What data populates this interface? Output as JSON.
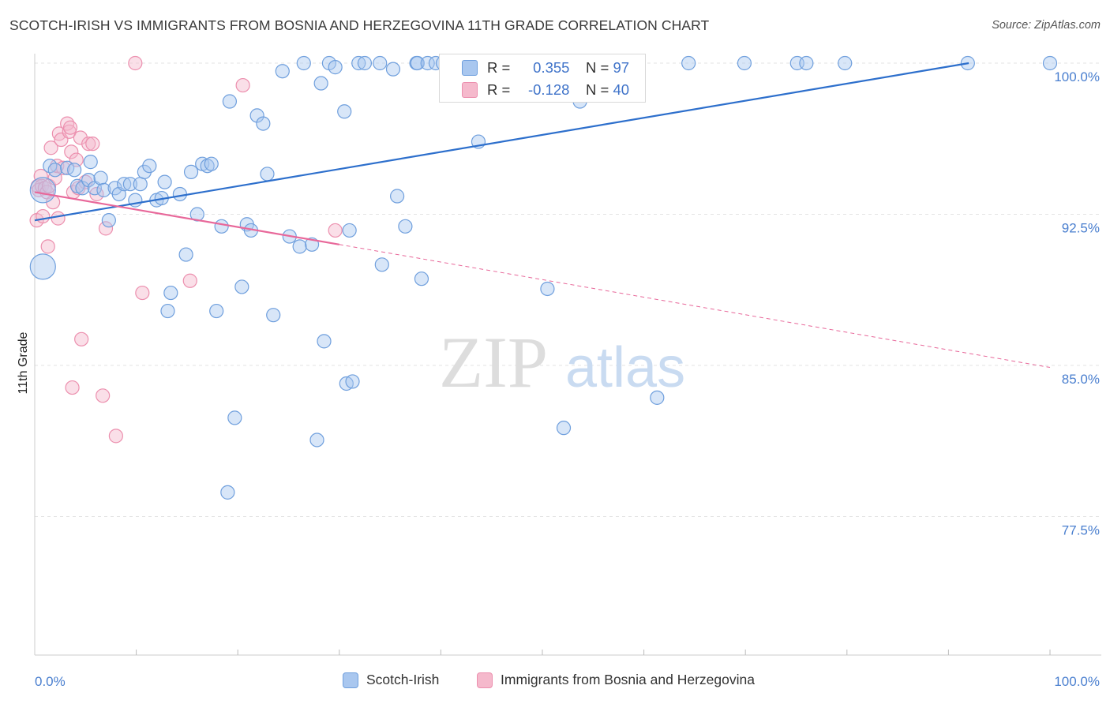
{
  "title": "SCOTCH-IRISH VS IMMIGRANTS FROM BOSNIA AND HERZEGOVINA 11TH GRADE CORRELATION CHART",
  "source": "Source: ZipAtlas.com",
  "watermark": {
    "zip": "ZIP",
    "atlas": "atlas"
  },
  "legend_stats": {
    "rows": [
      {
        "r_label": "R =",
        "r_value": "0.355",
        "n_label": "N =",
        "n_value": "97"
      },
      {
        "r_label": "R =",
        "r_value": "-0.128",
        "n_label": "N =",
        "n_value": "40"
      }
    ]
  },
  "colors": {
    "blue_fill": "#a9c7ef",
    "blue_stroke": "#6f9fdd",
    "blue_line": "#2d6fcc",
    "pink_fill": "#f5b9cc",
    "pink_stroke": "#ec8fae",
    "pink_line": "#e8689a",
    "tick_text": "#4a7fcf",
    "grid": "#e3e3e3"
  },
  "chart_data": {
    "type": "scatter",
    "title": "SCOTCH-IRISH VS IMMIGRANTS FROM BOSNIA AND HERZEGOVINA 11TH GRADE CORRELATION CHART",
    "xlabel": "",
    "ylabel": "11th Grade",
    "xlim": [
      0,
      100
    ],
    "ylim": [
      70.0,
      100.8
    ],
    "x_tick_labels": [
      "0.0%",
      "100.0%"
    ],
    "y_ticks": [
      100.0,
      92.5,
      85.0,
      77.5
    ],
    "y_tick_labels": [
      "100.0%",
      "92.5%",
      "85.0%",
      "77.5%"
    ],
    "grid": true,
    "legend_position": "bottom",
    "series": [
      {
        "name": "Scotch-Irish",
        "color": "#6f9fdd",
        "trend": {
          "x": [
            0,
            92
          ],
          "y": [
            92.2,
            100.0
          ],
          "style": "solid"
        },
        "points": [
          {
            "x": 0.8,
            "y": 89.9,
            "big": true
          },
          {
            "x": 0.8,
            "y": 93.7,
            "big": true
          },
          {
            "x": 1.5,
            "y": 94.9
          },
          {
            "x": 2.0,
            "y": 94.7
          },
          {
            "x": 3.2,
            "y": 94.8
          },
          {
            "x": 3.9,
            "y": 94.7
          },
          {
            "x": 4.2,
            "y": 93.9
          },
          {
            "x": 4.7,
            "y": 93.8
          },
          {
            "x": 5.3,
            "y": 94.2
          },
          {
            "x": 5.5,
            "y": 95.1
          },
          {
            "x": 5.9,
            "y": 93.8
          },
          {
            "x": 6.5,
            "y": 94.3
          },
          {
            "x": 6.8,
            "y": 93.7
          },
          {
            "x": 7.3,
            "y": 92.2
          },
          {
            "x": 7.9,
            "y": 93.8
          },
          {
            "x": 8.3,
            "y": 93.5
          },
          {
            "x": 8.8,
            "y": 94.0
          },
          {
            "x": 9.4,
            "y": 94.0
          },
          {
            "x": 9.9,
            "y": 93.2
          },
          {
            "x": 10.4,
            "y": 94.0
          },
          {
            "x": 10.8,
            "y": 94.6
          },
          {
            "x": 11.3,
            "y": 94.9
          },
          {
            "x": 12.0,
            "y": 93.2
          },
          {
            "x": 12.5,
            "y": 93.3
          },
          {
            "x": 12.8,
            "y": 94.1
          },
          {
            "x": 13.4,
            "y": 88.6
          },
          {
            "x": 13.1,
            "y": 87.7
          },
          {
            "x": 14.3,
            "y": 93.5
          },
          {
            "x": 14.9,
            "y": 90.5
          },
          {
            "x": 15.4,
            "y": 94.6
          },
          {
            "x": 16.0,
            "y": 92.5
          },
          {
            "x": 16.5,
            "y": 95.0
          },
          {
            "x": 17.0,
            "y": 94.9
          },
          {
            "x": 17.4,
            "y": 95.0
          },
          {
            "x": 17.9,
            "y": 87.7
          },
          {
            "x": 18.4,
            "y": 91.9
          },
          {
            "x": 19.0,
            "y": 78.7
          },
          {
            "x": 19.2,
            "y": 98.1
          },
          {
            "x": 19.7,
            "y": 82.4
          },
          {
            "x": 20.4,
            "y": 88.9
          },
          {
            "x": 20.9,
            "y": 92.0
          },
          {
            "x": 21.3,
            "y": 91.7
          },
          {
            "x": 21.9,
            "y": 97.4
          },
          {
            "x": 22.5,
            "y": 97.0
          },
          {
            "x": 22.9,
            "y": 94.5
          },
          {
            "x": 23.5,
            "y": 87.5
          },
          {
            "x": 24.4,
            "y": 99.6
          },
          {
            "x": 25.1,
            "y": 91.4
          },
          {
            "x": 26.1,
            "y": 90.9
          },
          {
            "x": 26.5,
            "y": 100.0
          },
          {
            "x": 27.3,
            "y": 91.0
          },
          {
            "x": 27.8,
            "y": 81.3
          },
          {
            "x": 28.2,
            "y": 99.0
          },
          {
            "x": 28.5,
            "y": 86.2
          },
          {
            "x": 29.0,
            "y": 100.0
          },
          {
            "x": 29.6,
            "y": 99.8
          },
          {
            "x": 30.5,
            "y": 97.6
          },
          {
            "x": 30.7,
            "y": 84.1
          },
          {
            "x": 31.3,
            "y": 84.2
          },
          {
            "x": 31.0,
            "y": 91.7
          },
          {
            "x": 31.9,
            "y": 100.0
          },
          {
            "x": 32.5,
            "y": 100.0
          },
          {
            "x": 34.0,
            "y": 100.0
          },
          {
            "x": 34.2,
            "y": 90.0
          },
          {
            "x": 35.3,
            "y": 99.7
          },
          {
            "x": 35.7,
            "y": 93.4
          },
          {
            "x": 36.5,
            "y": 91.9
          },
          {
            "x": 37.6,
            "y": 100.0
          },
          {
            "x": 37.7,
            "y": 100.0
          },
          {
            "x": 38.1,
            "y": 89.3
          },
          {
            "x": 38.7,
            "y": 100.0
          },
          {
            "x": 39.5,
            "y": 100.0
          },
          {
            "x": 40.2,
            "y": 100.0
          },
          {
            "x": 41.2,
            "y": 100.0
          },
          {
            "x": 43.7,
            "y": 96.1
          },
          {
            "x": 44.5,
            "y": 100.0
          },
          {
            "x": 46.5,
            "y": 100.0
          },
          {
            "x": 48.3,
            "y": 100.0
          },
          {
            "x": 50.3,
            "y": 100.0
          },
          {
            "x": 50.8,
            "y": 100.0
          },
          {
            "x": 52.6,
            "y": 100.0
          },
          {
            "x": 53.5,
            "y": 100.0
          },
          {
            "x": 50.5,
            "y": 88.8
          },
          {
            "x": 52.1,
            "y": 81.9
          },
          {
            "x": 53.7,
            "y": 98.1
          },
          {
            "x": 56.5,
            "y": 100.0
          },
          {
            "x": 61.3,
            "y": 83.4
          },
          {
            "x": 64.4,
            "y": 100.0
          },
          {
            "x": 69.9,
            "y": 100.0
          },
          {
            "x": 75.1,
            "y": 100.0
          },
          {
            "x": 76.0,
            "y": 100.0
          },
          {
            "x": 79.8,
            "y": 100.0
          },
          {
            "x": 91.9,
            "y": 100.0
          },
          {
            "x": 100.0,
            "y": 100.0
          }
        ]
      },
      {
        "name": "Immigrants from Bosnia and Herzegovina",
        "color": "#ec8fae",
        "trend": {
          "x": [
            0,
            30
          ],
          "y": [
            93.6,
            91.0
          ],
          "style": "solid",
          "extended_to_x": 100,
          "extended_to_y": 84.9
        },
        "points": [
          {
            "x": 0.2,
            "y": 92.2
          },
          {
            "x": 0.3,
            "y": 93.9
          },
          {
            "x": 0.4,
            "y": 93.7
          },
          {
            "x": 0.6,
            "y": 94.4
          },
          {
            "x": 0.7,
            "y": 93.9
          },
          {
            "x": 0.8,
            "y": 92.4
          },
          {
            "x": 1.0,
            "y": 93.8
          },
          {
            "x": 1.2,
            "y": 93.6
          },
          {
            "x": 1.3,
            "y": 90.9
          },
          {
            "x": 1.4,
            "y": 93.9
          },
          {
            "x": 1.6,
            "y": 95.8
          },
          {
            "x": 1.8,
            "y": 93.1
          },
          {
            "x": 2.0,
            "y": 94.3
          },
          {
            "x": 2.2,
            "y": 94.9
          },
          {
            "x": 2.3,
            "y": 92.3
          },
          {
            "x": 2.4,
            "y": 96.5
          },
          {
            "x": 2.6,
            "y": 96.2
          },
          {
            "x": 2.8,
            "y": 94.8
          },
          {
            "x": 3.2,
            "y": 97.0
          },
          {
            "x": 3.4,
            "y": 96.6
          },
          {
            "x": 3.6,
            "y": 95.6
          },
          {
            "x": 3.5,
            "y": 96.8
          },
          {
            "x": 3.8,
            "y": 93.6
          },
          {
            "x": 3.7,
            "y": 83.9
          },
          {
            "x": 4.1,
            "y": 95.2
          },
          {
            "x": 4.5,
            "y": 96.3
          },
          {
            "x": 4.3,
            "y": 93.8
          },
          {
            "x": 4.6,
            "y": 86.3
          },
          {
            "x": 5.0,
            "y": 94.1
          },
          {
            "x": 5.3,
            "y": 96.0
          },
          {
            "x": 5.7,
            "y": 96.0
          },
          {
            "x": 6.1,
            "y": 93.5
          },
          {
            "x": 6.7,
            "y": 83.5
          },
          {
            "x": 7.0,
            "y": 91.8
          },
          {
            "x": 8.0,
            "y": 81.5
          },
          {
            "x": 9.9,
            "y": 100.0
          },
          {
            "x": 10.6,
            "y": 88.6
          },
          {
            "x": 15.3,
            "y": 89.2
          },
          {
            "x": 20.5,
            "y": 98.9
          },
          {
            "x": 29.6,
            "y": 91.7
          }
        ]
      }
    ]
  },
  "legend": {
    "series1": "Scotch-Irish",
    "series2": "Immigrants from Bosnia and Herzegovina"
  }
}
